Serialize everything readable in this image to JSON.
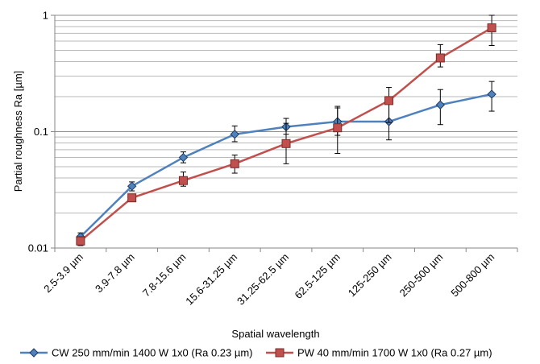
{
  "chart_data": {
    "type": "line",
    "title": "",
    "xlabel": "Spatial wavelength",
    "ylabel": "Partial roughness Ra [µm]",
    "yscale": "log",
    "ylim": [
      0.01,
      1
    ],
    "yticks": [
      {
        "value": 0.01,
        "label": "0.01"
      },
      {
        "value": 0.1,
        "label": "0.1"
      },
      {
        "value": 1,
        "label": "1"
      }
    ],
    "grid": "horizontal major and minor",
    "legend_position": "bottom",
    "categories": [
      "2.5-3.9 µm",
      "3.9-7.8 µm",
      "7.8-15.6 µm",
      "15.6-31.25 µm",
      "31.25-62.5 µm",
      "62.5-125 µm",
      "125-250 µm",
      "250-500 µm",
      "500-800 µm"
    ],
    "series": [
      {
        "name": "CW 250 mm/min 1400 W 1x0 (Ra 0.23 µm)",
        "color": "#4f81bd",
        "marker": "diamond",
        "values": [
          0.0125,
          0.034,
          0.06,
          0.095,
          0.11,
          0.122,
          0.122,
          0.17,
          0.21
        ],
        "err_low": [
          0.0115,
          0.031,
          0.054,
          0.082,
          0.095,
          0.093,
          0.085,
          0.115,
          0.15
        ],
        "err_high": [
          0.0135,
          0.037,
          0.067,
          0.112,
          0.13,
          0.16,
          0.18,
          0.23,
          0.27
        ]
      },
      {
        "name": "PW 40 mm/min 1700 W 1x0 (Ra 0.27 µm)",
        "color": "#c0504d",
        "marker": "square",
        "values": [
          0.0115,
          0.027,
          0.038,
          0.053,
          0.079,
          0.108,
          0.185,
          0.43,
          0.78
        ],
        "err_low": [
          0.0105,
          0.025,
          0.034,
          0.044,
          0.053,
          0.065,
          0.12,
          0.36,
          0.55
        ],
        "err_high": [
          0.0125,
          0.029,
          0.045,
          0.063,
          0.118,
          0.165,
          0.24,
          0.56,
          1.0
        ]
      }
    ]
  }
}
